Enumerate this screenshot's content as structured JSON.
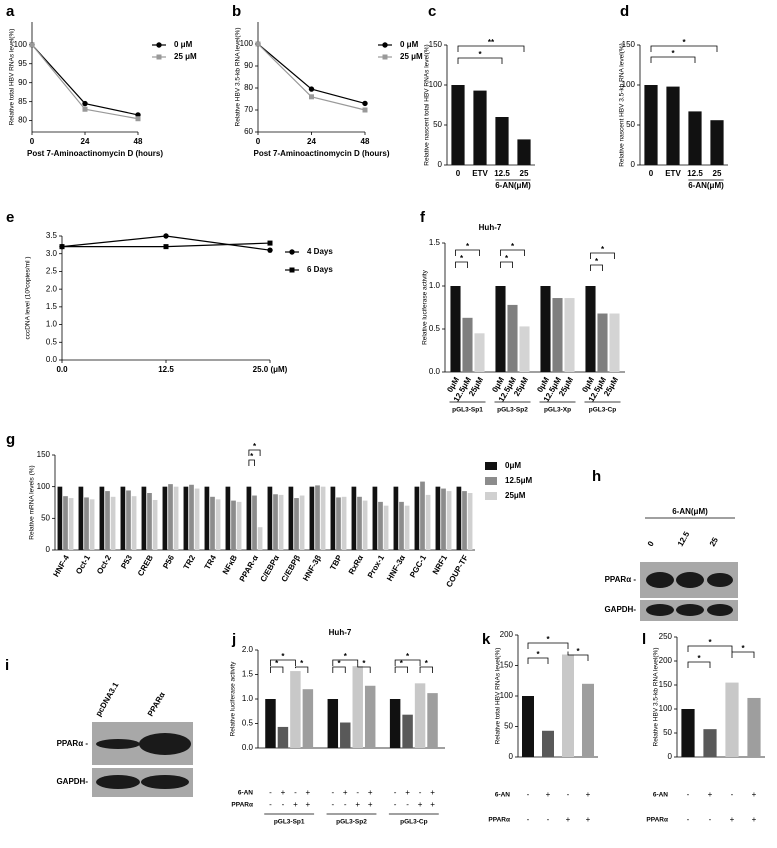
{
  "chart_data": [
    {
      "panel": "a",
      "type": "line",
      "x": [
        0,
        24,
        48
      ],
      "xlim": [
        0,
        48
      ],
      "xticks": [
        0,
        24,
        48
      ],
      "ylim": [
        77,
        106
      ],
      "yticks": [
        80,
        85,
        90,
        95,
        100
      ],
      "xlabel": "Post 7-Aminoactinomycin D (hours)",
      "ylabel": "Relative total HBV RNAs level(%)",
      "series": [
        {
          "name": "0 μM",
          "color": "#000000",
          "marker": "circle",
          "values": [
            100,
            84.5,
            81.5
          ]
        },
        {
          "name": "25 μM",
          "color": "#999999",
          "marker": "square",
          "values": [
            100,
            83,
            80.5
          ]
        }
      ]
    },
    {
      "panel": "b",
      "type": "line",
      "x": [
        0,
        24,
        48
      ],
      "xlim": [
        0,
        48
      ],
      "xticks": [
        0,
        24,
        48
      ],
      "ylim": [
        60,
        110
      ],
      "yticks": [
        60,
        70,
        80,
        90,
        100
      ],
      "xlabel": "Post 7-Aminoactinomycin D (hours)",
      "ylabel": "Relative HBV 3.5-kb RNA level(%)",
      "series": [
        {
          "name": "0 μM",
          "color": "#000000",
          "marker": "circle",
          "values": [
            100,
            79.5,
            73
          ]
        },
        {
          "name": "25 μM",
          "color": "#999999",
          "marker": "square",
          "values": [
            100,
            76,
            70
          ]
        }
      ]
    },
    {
      "panel": "c",
      "type": "bar",
      "categories": [
        "0",
        "ETV",
        "12.5",
        "25"
      ],
      "values": [
        100,
        93,
        60,
        32
      ],
      "color": "#111111",
      "ylim": [
        0,
        150
      ],
      "yticks": [
        0,
        50,
        100,
        150
      ],
      "ylabel": "Relative nascent total HBV RNAs level(%)",
      "group_label": "6-AN(μM)",
      "annotations": [
        "*",
        "**"
      ]
    },
    {
      "panel": "d",
      "type": "bar",
      "categories": [
        "0",
        "ETV",
        "12.5",
        "25"
      ],
      "values": [
        100,
        98,
        67,
        56
      ],
      "color": "#111111",
      "ylim": [
        0,
        150
      ],
      "yticks": [
        0,
        50,
        100,
        150
      ],
      "ylabel": "Relative nascent HBV 3.5-kb RNA level(%)",
      "group_label": "6-AN(μM)",
      "annotations": [
        "*",
        "*"
      ]
    },
    {
      "panel": "e",
      "type": "line",
      "x": [
        0,
        12.5,
        25
      ],
      "xlim": [
        0,
        25
      ],
      "xticks": [
        {
          "value": 0,
          "label": "0.0"
        },
        12.5,
        {
          "value": 25,
          "label": "25.0 (μM)"
        }
      ],
      "ylim": [
        0,
        3.5
      ],
      "yticks": [
        {
          "value": 0,
          "label": "0.0"
        },
        0.5,
        {
          "value": 1,
          "label": "1.0"
        },
        1.5,
        {
          "value": 2,
          "label": "2.0"
        },
        2.5,
        {
          "value": 3,
          "label": "3.0"
        },
        3.5
      ],
      "ylabel": "cccDNA level (10³copies/ml )",
      "series": [
        {
          "name": "4 Days",
          "color": "#000000",
          "marker": "circle",
          "values": [
            3.2,
            3.5,
            3.1
          ]
        },
        {
          "name": "6 Days",
          "color": "#000000",
          "marker": "square",
          "values": [
            3.2,
            3.2,
            3.3
          ]
        }
      ]
    },
    {
      "panel": "f",
      "type": "grouped_bar",
      "title": "Huh-7",
      "categories": [
        "pGL3-Sp1",
        "pGL3-Sp2",
        "pGL3-Xp",
        "pGL3-Cp"
      ],
      "ylim": [
        0,
        1.5
      ],
      "yticks": [
        {
          "value": 0,
          "label": "0.0"
        },
        0.5,
        {
          "value": 1,
          "label": "1.0"
        },
        1.5
      ],
      "ylabel": "Relative luciferase activity",
      "series": [
        {
          "name": "0μM",
          "color": "#111111",
          "values": [
            1.0,
            1.0,
            1.0,
            1.0
          ]
        },
        {
          "name": "12.5μM",
          "color": "#7f7f7f",
          "values": [
            0.63,
            0.78,
            0.86,
            0.68
          ]
        },
        {
          "name": "25μM",
          "color": "#d4d4d4",
          "values": [
            0.45,
            0.53,
            0.86,
            0.68
          ]
        }
      ],
      "annotations": [
        "*",
        "*",
        "*",
        "*",
        "*",
        "*"
      ]
    },
    {
      "panel": "g",
      "type": "grouped_bar",
      "categories": [
        "HNF-4",
        "Oct-1",
        "Oct-2",
        "P53",
        "CREB",
        "P56",
        "TR2",
        "TR4",
        "NFκB",
        "PPAR-α",
        "C/EBPα",
        "C/EBPβ",
        "HNF-3β",
        "TBP",
        "RxRα",
        "Prox-1",
        "HNF-3α",
        "PGC-1",
        "NRF1",
        "COUP-TF"
      ],
      "ylim": [
        0,
        150
      ],
      "yticks": [
        0,
        50,
        100,
        150
      ],
      "ylabel": "Relative mRNA levels (%)",
      "series": [
        {
          "name": "0μM",
          "color": "#111111",
          "values": [
            100,
            100,
            100,
            100,
            100,
            100,
            100,
            100,
            100,
            100,
            100,
            100,
            100,
            100,
            100,
            100,
            100,
            100,
            100,
            100
          ]
        },
        {
          "name": "12.5μM",
          "color": "#8c8c8c",
          "values": [
            85,
            83,
            93,
            94,
            90,
            104,
            103,
            84,
            78,
            86,
            88,
            82,
            102,
            83,
            84,
            76,
            76,
            108,
            97,
            93
          ]
        },
        {
          "name": "25μM",
          "color": "#d0d0d0",
          "values": [
            82,
            80,
            84,
            85,
            79,
            100,
            97,
            80,
            76,
            36,
            87,
            86,
            100,
            84,
            78,
            70,
            70,
            87,
            93,
            90
          ]
        }
      ],
      "annotations": [
        "*",
        "*"
      ]
    },
    {
      "panel": "j",
      "type": "grouped_bar",
      "title": "Huh-7",
      "categories": [
        "pGL3-Sp1",
        "pGL3-Sp2",
        "pGL3-Cp"
      ],
      "ylim": [
        0,
        2
      ],
      "yticks": [
        {
          "value": 0,
          "label": "0.0"
        },
        0.5,
        {
          "value": 1,
          "label": "1.0"
        },
        1.5,
        {
          "value": 2,
          "label": "2.0"
        }
      ],
      "ylabel": "Relative luciferase activity",
      "series": [
        {
          "color": "#111111",
          "values": [
            1.0,
            1.0,
            1.0
          ]
        },
        {
          "color": "#595959",
          "values": [
            0.43,
            0.52,
            0.68
          ]
        },
        {
          "color": "#c8c8c8",
          "values": [
            1.57,
            1.67,
            1.32
          ]
        },
        {
          "color": "#9e9e9e",
          "values": [
            1.2,
            1.27,
            1.12
          ]
        }
      ],
      "treatments": [
        {
          "name": "6-AN",
          "signs": [
            "-",
            "+",
            "-",
            "+",
            "-",
            "+",
            "-",
            "+",
            "-",
            "+",
            "-",
            "+"
          ]
        },
        {
          "name": "PPARα",
          "signs": [
            "-",
            "-",
            "+",
            "+",
            "-",
            "-",
            "+",
            "+",
            "-",
            "-",
            "+",
            "+"
          ]
        }
      ],
      "annotations": [
        "*",
        "*",
        "*",
        "*",
        "*",
        "*",
        "*",
        "*",
        "*"
      ]
    },
    {
      "panel": "k",
      "type": "bar",
      "values": [
        100,
        43,
        168,
        120
      ],
      "colors": [
        "#111111",
        "#595959",
        "#c8c8c8",
        "#9e9e9e"
      ],
      "ylim": [
        0,
        200
      ],
      "yticks": [
        0,
        50,
        100,
        150,
        200
      ],
      "ylabel": "Relative total HBV RNAs level(%)",
      "treatments": [
        {
          "name": "6-AN",
          "signs": [
            "-",
            "+",
            "-",
            "+"
          ]
        },
        {
          "name": "PPARα",
          "signs": [
            "-",
            "-",
            "+",
            "+"
          ]
        }
      ],
      "annotations": [
        "*",
        "*",
        "*"
      ]
    },
    {
      "panel": "l",
      "type": "bar",
      "values": [
        100,
        58,
        155,
        123
      ],
      "colors": [
        "#111111",
        "#595959",
        "#c8c8c8",
        "#9e9e9e"
      ],
      "ylim": [
        0,
        250
      ],
      "yticks": [
        0,
        50,
        100,
        150,
        200,
        250
      ],
      "ylabel": "Relative HBV 3.5-kb RNA level(%)",
      "treatments": [
        {
          "name": "6-AN",
          "signs": [
            "-",
            "+",
            "-",
            "+"
          ]
        },
        {
          "name": "PPARα",
          "signs": [
            "-",
            "-",
            "+",
            "+"
          ]
        }
      ],
      "annotations": [
        "*",
        "*",
        "*"
      ]
    }
  ],
  "blots": [
    {
      "panel": "h",
      "header": "6-AN(μM)",
      "lanes": [
        "0",
        "12.5",
        "25"
      ],
      "rows": [
        "PPARα -",
        "GAPDH-"
      ]
    },
    {
      "panel": "i",
      "lanes": [
        "pcDNA3.1",
        "PPARα"
      ],
      "rows": [
        "PPARα -",
        "GAPDH-"
      ]
    }
  ]
}
